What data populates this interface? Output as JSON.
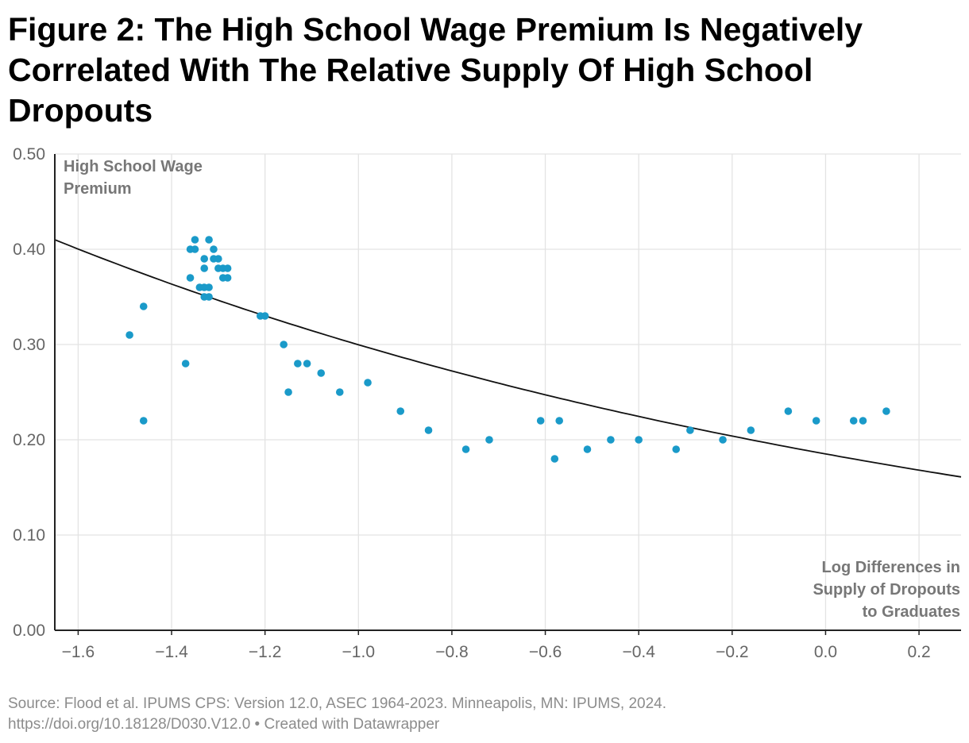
{
  "title": "Figure 2: The High School Wage Premium Is Negatively Correlated With The Relative Supply Of High School Dropouts",
  "source_line1": "Source: Flood et al. IPUMS CPS: Version 12.0, ASEC 1964-2023. Minneapolis, MN: IPUMS, 2024.",
  "source_line2": "https://doi.org/10.18128/D030.V12.0 • Created with Datawrapper",
  "colors": {
    "points": "#1a9ac9",
    "fit_line": "#111111",
    "grid": "#e3e3e3",
    "axis": "#222222",
    "axis_label": "#777777",
    "tick_label": "#666666"
  },
  "chart_data": {
    "type": "scatter",
    "title": "Figure 2: The High School Wage Premium Is Negatively Correlated With The Relative Supply Of High School Dropouts",
    "ylabel_lines": [
      "High School Wage",
      "Premium"
    ],
    "xlabel_lines": [
      "Log Differences in",
      "Supply of Dropouts",
      "to Graduates"
    ],
    "xlim": [
      -1.65,
      0.29
    ],
    "ylim": [
      0,
      0.5
    ],
    "xticks": [
      -1.6,
      -1.4,
      -1.2,
      -1.0,
      -0.8,
      -0.6,
      -0.4,
      -0.2,
      0.0,
      0.2
    ],
    "xtick_labels": [
      "−1.6",
      "−1.4",
      "−1.2",
      "−1.0",
      "−0.8",
      "−0.6",
      "−0.4",
      "−0.2",
      "0.0",
      "0.2"
    ],
    "yticks": [
      0,
      0.1,
      0.2,
      0.3,
      0.4,
      0.5
    ],
    "ytick_labels": [
      "0.00",
      "0.10",
      "0.20",
      "0.30",
      "0.40",
      "0.50"
    ],
    "grid": true,
    "points": [
      {
        "x": -1.49,
        "y": 0.31
      },
      {
        "x": -1.46,
        "y": 0.34
      },
      {
        "x": -1.46,
        "y": 0.22
      },
      {
        "x": -1.37,
        "y": 0.28
      },
      {
        "x": -1.36,
        "y": 0.4
      },
      {
        "x": -1.36,
        "y": 0.37
      },
      {
        "x": -1.35,
        "y": 0.41
      },
      {
        "x": -1.35,
        "y": 0.4
      },
      {
        "x": -1.34,
        "y": 0.36
      },
      {
        "x": -1.33,
        "y": 0.39
      },
      {
        "x": -1.33,
        "y": 0.38
      },
      {
        "x": -1.33,
        "y": 0.36
      },
      {
        "x": -1.33,
        "y": 0.35
      },
      {
        "x": -1.32,
        "y": 0.41
      },
      {
        "x": -1.32,
        "y": 0.36
      },
      {
        "x": -1.32,
        "y": 0.35
      },
      {
        "x": -1.31,
        "y": 0.4
      },
      {
        "x": -1.31,
        "y": 0.39
      },
      {
        "x": -1.3,
        "y": 0.39
      },
      {
        "x": -1.3,
        "y": 0.38
      },
      {
        "x": -1.29,
        "y": 0.38
      },
      {
        "x": -1.29,
        "y": 0.37
      },
      {
        "x": -1.28,
        "y": 0.38
      },
      {
        "x": -1.28,
        "y": 0.37
      },
      {
        "x": -1.21,
        "y": 0.33
      },
      {
        "x": -1.2,
        "y": 0.33
      },
      {
        "x": -1.16,
        "y": 0.3
      },
      {
        "x": -1.15,
        "y": 0.25
      },
      {
        "x": -1.13,
        "y": 0.28
      },
      {
        "x": -1.11,
        "y": 0.28
      },
      {
        "x": -1.08,
        "y": 0.27
      },
      {
        "x": -1.04,
        "y": 0.25
      },
      {
        "x": -0.98,
        "y": 0.26
      },
      {
        "x": -0.91,
        "y": 0.23
      },
      {
        "x": -0.85,
        "y": 0.21
      },
      {
        "x": -0.77,
        "y": 0.19
      },
      {
        "x": -0.72,
        "y": 0.2
      },
      {
        "x": -0.61,
        "y": 0.22
      },
      {
        "x": -0.58,
        "y": 0.18
      },
      {
        "x": -0.57,
        "y": 0.22
      },
      {
        "x": -0.51,
        "y": 0.19
      },
      {
        "x": -0.46,
        "y": 0.2
      },
      {
        "x": -0.4,
        "y": 0.2
      },
      {
        "x": -0.32,
        "y": 0.19
      },
      {
        "x": -0.29,
        "y": 0.21
      },
      {
        "x": -0.22,
        "y": 0.2
      },
      {
        "x": -0.16,
        "y": 0.21
      },
      {
        "x": -0.08,
        "y": 0.23
      },
      {
        "x": -0.02,
        "y": 0.22
      },
      {
        "x": 0.06,
        "y": 0.22
      },
      {
        "x": 0.08,
        "y": 0.22
      },
      {
        "x": 0.13,
        "y": 0.23
      }
    ],
    "trend_line": {
      "type": "exponential",
      "x": [
        -1.65,
        -1.4,
        -1.2,
        -1.0,
        -0.8,
        -0.6,
        -0.4,
        -0.2,
        0.0,
        0.29
      ],
      "y": [
        0.41,
        0.357,
        0.326,
        0.299,
        0.272,
        0.247,
        0.225,
        0.205,
        0.187,
        0.161
      ]
    }
  }
}
